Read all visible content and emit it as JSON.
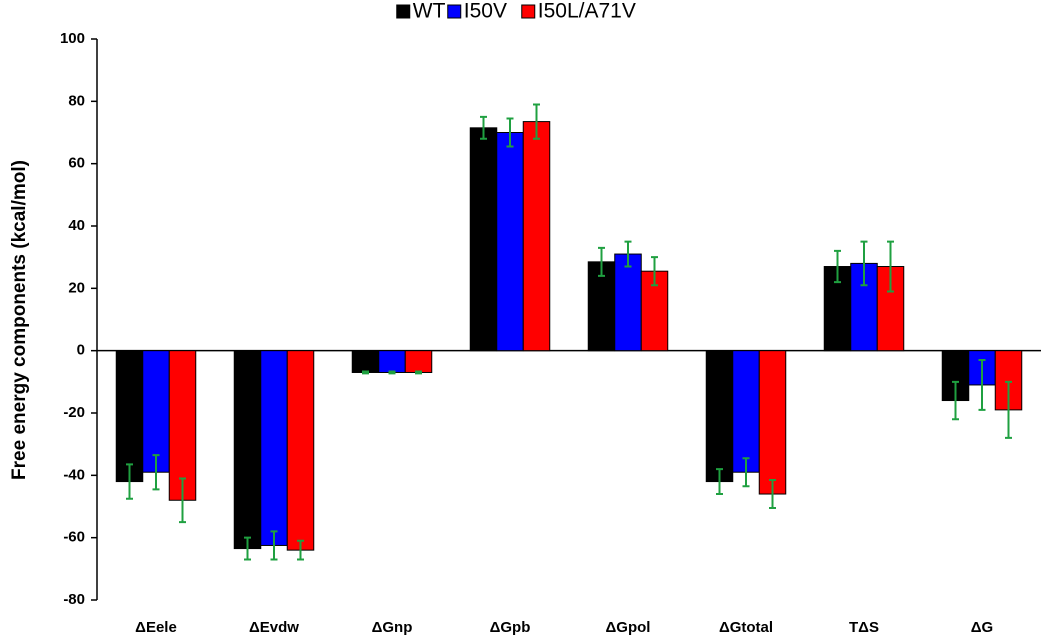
{
  "chart_data": {
    "type": "bar",
    "y_label": "Free energy components (kcal/mol)",
    "categories": [
      "ΔEele",
      "ΔEvdw",
      "ΔGnp",
      "ΔGpb",
      "ΔGpol",
      "ΔGtotal",
      "TΔS",
      "ΔG"
    ],
    "series": [
      {
        "name": "WT",
        "color": "#000000",
        "values": [
          -42,
          -63.5,
          -7,
          71.5,
          28.5,
          -42,
          27,
          -16
        ],
        "errors": [
          5.5,
          3.5,
          0.3,
          3.5,
          4.5,
          4,
          5,
          6
        ]
      },
      {
        "name": "I50V",
        "color": "#0000ff",
        "values": [
          -39,
          -62.5,
          -7,
          70,
          31,
          -39,
          28,
          -11
        ],
        "errors": [
          5.5,
          4.5,
          0.3,
          4.5,
          4,
          4.5,
          7,
          8
        ]
      },
      {
        "name": "I50L/A71V",
        "color": "#ff0000",
        "values": [
          -48,
          -64,
          -7,
          73.5,
          25.5,
          -46,
          27,
          -19
        ],
        "errors": [
          7,
          3,
          0.3,
          5.5,
          4.5,
          4.5,
          8,
          9
        ]
      }
    ],
    "error_color": "#1fa040",
    "ylim": [
      -80,
      100
    ],
    "yticks": [
      -80,
      -60,
      -40,
      -20,
      0,
      20,
      40,
      60,
      80,
      100
    ],
    "legend": "top"
  }
}
